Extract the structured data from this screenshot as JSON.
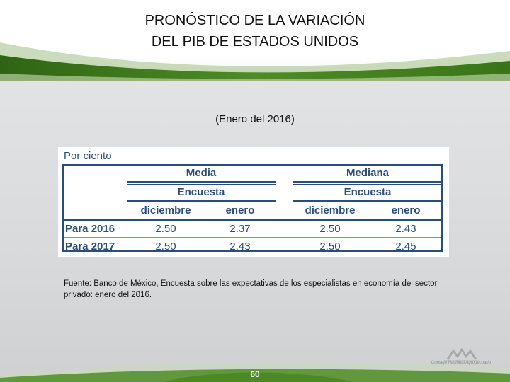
{
  "header": {
    "title_line1": "PRONÓSTICO DE LA VARIACIÓN",
    "title_line2": "DEL PIB DE ESTADOS UNIDOS"
  },
  "subtitle": "(Enero del 2016)",
  "table": {
    "unit": "Por ciento",
    "groups": [
      {
        "label": "Media",
        "sub": "Encuesta",
        "cols": [
          "diciembre",
          "enero"
        ]
      },
      {
        "label": "Mediana",
        "sub": "Encuesta",
        "cols": [
          "diciembre",
          "enero"
        ]
      }
    ],
    "rows": [
      {
        "label": "Para 2016",
        "values": [
          "2.50",
          "2.37",
          "2.50",
          "2.43"
        ]
      },
      {
        "label": "Para 2017",
        "values": [
          "2.50",
          "2.43",
          "2.50",
          "2.45"
        ]
      }
    ]
  },
  "source_text": "Fuente: Banco de México, Encuesta sobre las expectativas de los especialistas en economía del sector privado: enero del 2016.",
  "page_number": "60",
  "logo": {
    "name": "consejo-nacional-agropecuario-logo",
    "text": "Consejo Nacional Agropecuario"
  },
  "colors": {
    "table_text": "#2b4d7a",
    "green_band": "#3f7a1f"
  }
}
